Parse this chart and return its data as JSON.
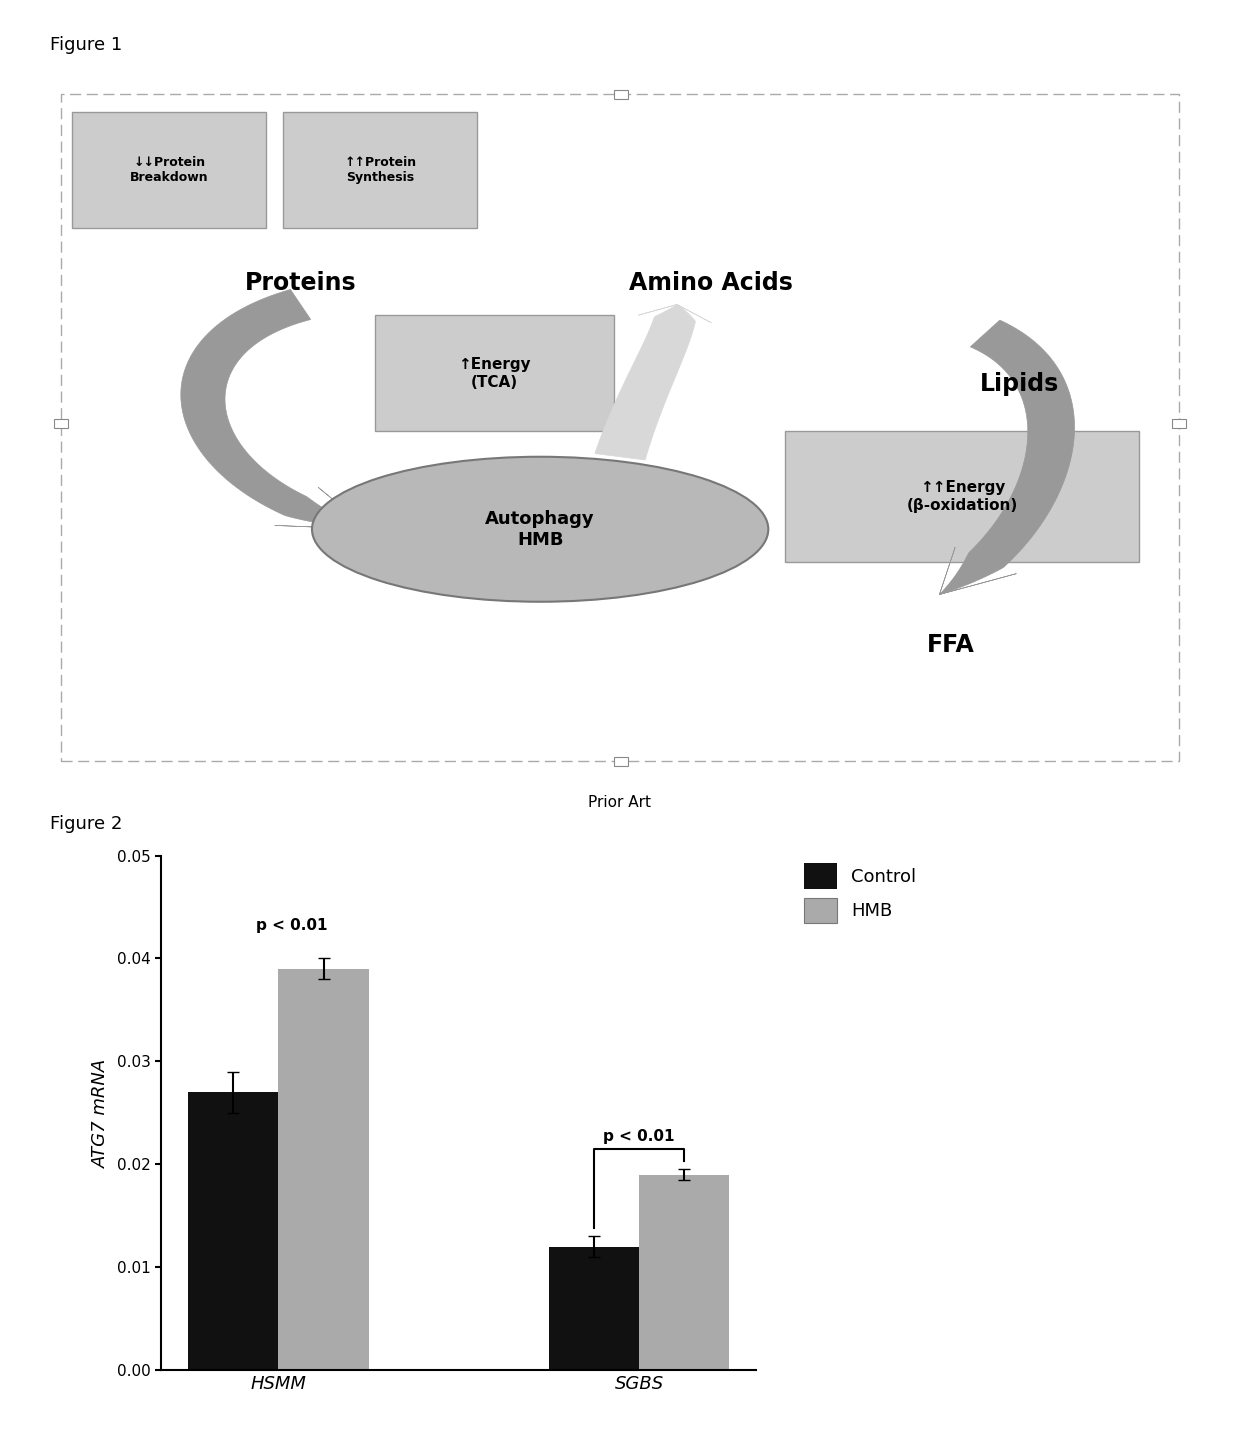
{
  "fig1_title": "Figure 1",
  "fig2_title": "Figure 2",
  "prior_art_label": "Prior Art",
  "diagram": {
    "protein_breakdown_label": "↓↓Protein\nBreakdown",
    "protein_synthesis_label": "↑↑Protein\nSynthesis",
    "proteins_label": "Proteins",
    "amino_acids_label": "Amino Acids",
    "lipids_label": "Lipids",
    "ffa_label": "FFA",
    "autophagy_label": "Autophagy\nHMB",
    "energy_tca_label": "↑Energy\n(TCA)",
    "energy_beta_label": "↑↑Energy\n(β-oxidation)",
    "box_color": "#cccccc",
    "box_edge_color": "#999999",
    "ellipse_color": "#b8b8b8",
    "ellipse_edge_color": "#777777",
    "arrow_dark": "#999999",
    "arrow_light": "#d8d8d8"
  },
  "bar_chart": {
    "groups": [
      "HSMM",
      "SGBS"
    ],
    "control_values": [
      0.027,
      0.012
    ],
    "hmb_values": [
      0.039,
      0.019
    ],
    "control_errors": [
      0.002,
      0.001
    ],
    "hmb_errors": [
      0.001,
      0.0005
    ],
    "control_color": "#111111",
    "hmb_color": "#aaaaaa",
    "ylabel": "ATG7 mRNA",
    "ylim": [
      0,
      0.05
    ],
    "yticks": [
      0.0,
      0.01,
      0.02,
      0.03,
      0.04,
      0.05
    ],
    "p_value_hsmm": "p < 0.01",
    "p_value_sgbs": "p < 0.01",
    "legend_labels": [
      "Control",
      "HMB"
    ],
    "bar_width": 0.35
  },
  "background_color": "#ffffff",
  "font_family": "DejaVu Sans"
}
